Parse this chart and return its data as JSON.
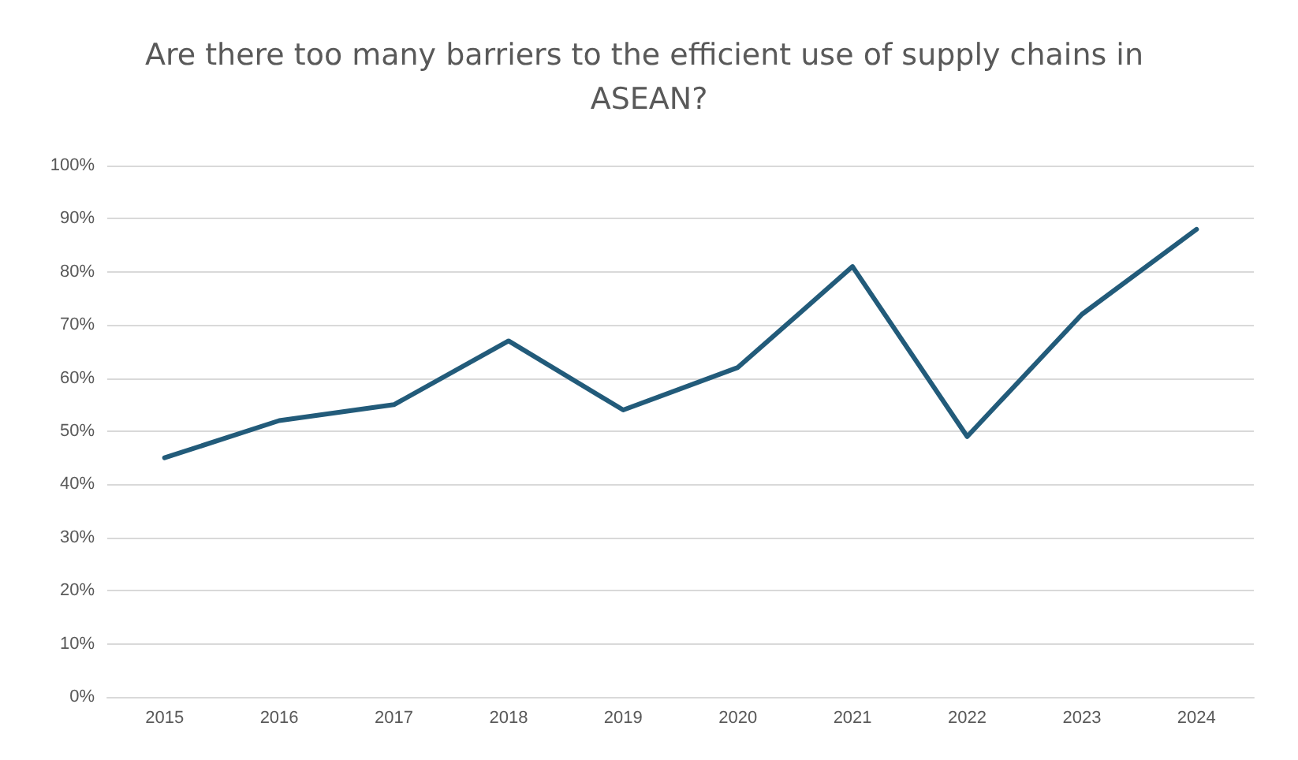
{
  "chart_data": {
    "type": "line",
    "title": "Are there too many barriers to the efficient use of supply chains in ASEAN?",
    "categories": [
      "2015",
      "2016",
      "2017",
      "2018",
      "2019",
      "2020",
      "2021",
      "2022",
      "2023",
      "2024"
    ],
    "series": [
      {
        "color": "#225b7a",
        "values": [
          45,
          52,
          55,
          67,
          54,
          62,
          81,
          49,
          72,
          88
        ]
      }
    ],
    "ylim": [
      0,
      100
    ],
    "yticks": [
      {
        "value": 0,
        "label": "0%"
      },
      {
        "value": 10,
        "label": "10%"
      },
      {
        "value": 20,
        "label": "20%"
      },
      {
        "value": 30,
        "label": "30%"
      },
      {
        "value": 40,
        "label": "40%"
      },
      {
        "value": 50,
        "label": "50%"
      },
      {
        "value": 60,
        "label": "60%"
      },
      {
        "value": 70,
        "label": "70%"
      },
      {
        "value": 80,
        "label": "80%"
      },
      {
        "value": 90,
        "label": "90%"
      },
      {
        "value": 100,
        "label": "100%"
      }
    ],
    "grid": "y",
    "marker": "none",
    "line_style": "solid"
  }
}
